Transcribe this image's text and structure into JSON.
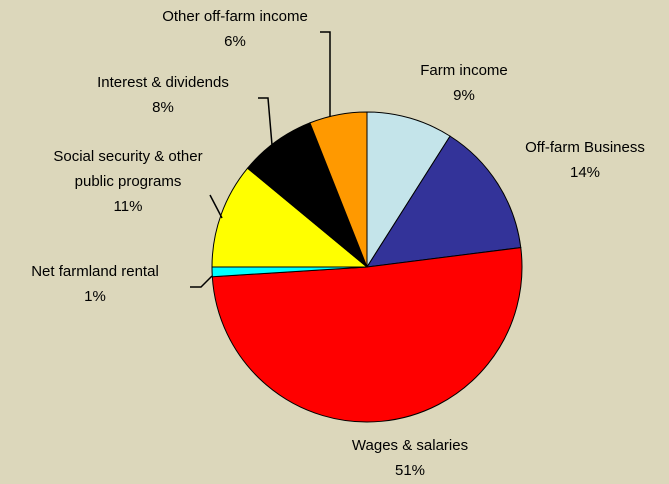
{
  "chart_data": {
    "type": "pie",
    "categories": [
      "Farm income",
      "Off-farm Business",
      "Wages & salaries",
      "Net farmland rental",
      "Social security & other public programs",
      "Interest & dividends",
      "Other off-farm income"
    ],
    "values": [
      9,
      14,
      51,
      1,
      11,
      8,
      6
    ],
    "value_labels": [
      "9%",
      "14%",
      "51%",
      "1%",
      "11%",
      "8%",
      "6%"
    ],
    "colors": [
      "#c4e4ea",
      "#333399",
      "#ff0000",
      "#00ffff",
      "#ffff00",
      "#000000",
      "#ff9900"
    ]
  }
}
